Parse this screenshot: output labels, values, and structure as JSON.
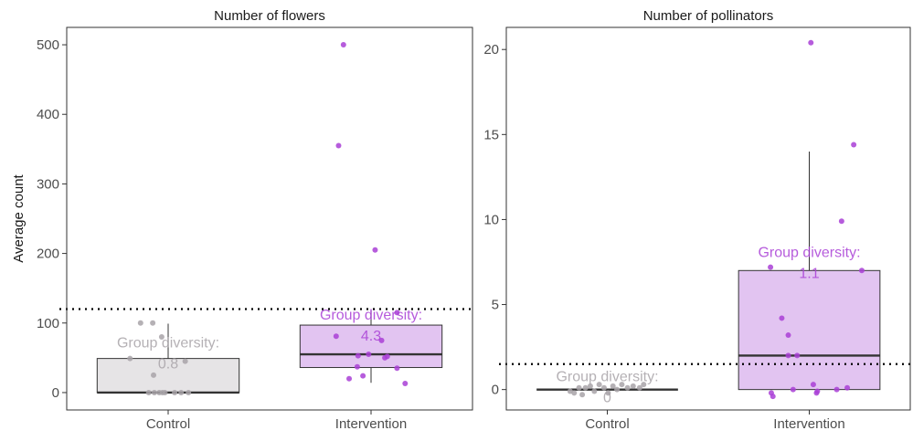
{
  "chart_data": [
    {
      "type": "box",
      "title": "Number of flowers",
      "ylabel": "Average count",
      "xlabel": "",
      "ylim": [
        -25,
        525
      ],
      "yticks": [
        0,
        100,
        200,
        300,
        400,
        500
      ],
      "categories": [
        "Control",
        "Intervention"
      ],
      "grid": false,
      "reference_line": 120,
      "colors": {
        "Control": "#a8a3a8",
        "Intervention": "#a93fd6"
      },
      "box_fill": {
        "Control": "#e6e4e6",
        "Intervention": "#e2c4f1"
      },
      "groups": [
        {
          "name": "Control",
          "box": {
            "q1": 0,
            "median": 0,
            "q3": 49,
            "whisker_low": 0,
            "whisker_high": 99
          },
          "points": [
            {
              "x": -0.47,
              "y": 49
            },
            {
              "x": -0.34,
              "y": 100
            },
            {
              "x": -0.24,
              "y": 0
            },
            {
              "x": -0.19,
              "y": 100
            },
            {
              "x": -0.18,
              "y": 25
            },
            {
              "x": -0.17,
              "y": 0
            },
            {
              "x": -0.11,
              "y": 0
            },
            {
              "x": -0.08,
              "y": 80
            },
            {
              "x": -0.07,
              "y": 0
            },
            {
              "x": -0.04,
              "y": 0
            },
            {
              "x": 0.08,
              "y": 0
            },
            {
              "x": 0.16,
              "y": 0
            },
            {
              "x": 0.21,
              "y": 45
            },
            {
              "x": 0.25,
              "y": 0
            }
          ],
          "annotation": {
            "label": "Group diversity:",
            "value": "0.8",
            "y": 65
          }
        },
        {
          "name": "Intervention",
          "box": {
            "q1": 36,
            "median": 55,
            "q3": 97,
            "whisker_low": 14,
            "whisker_high": 118
          },
          "points": [
            {
              "x": -0.43,
              "y": 81
            },
            {
              "x": -0.4,
              "y": 355
            },
            {
              "x": -0.34,
              "y": 500
            },
            {
              "x": -0.27,
              "y": 20
            },
            {
              "x": -0.17,
              "y": 37
            },
            {
              "x": -0.16,
              "y": 53
            },
            {
              "x": -0.1,
              "y": 24
            },
            {
              "x": -0.03,
              "y": 55
            },
            {
              "x": 0.05,
              "y": 205
            },
            {
              "x": 0.13,
              "y": 75
            },
            {
              "x": 0.17,
              "y": 50
            },
            {
              "x": 0.2,
              "y": 52
            },
            {
              "x": 0.32,
              "y": 115
            },
            {
              "x": 0.32,
              "y": 35
            },
            {
              "x": 0.42,
              "y": 13
            }
          ],
          "annotation": {
            "label": "Group diversity:",
            "value": "4.3",
            "y": 105
          }
        }
      ]
    },
    {
      "type": "box",
      "title": "Number of pollinators",
      "ylabel": "",
      "xlabel": "",
      "ylim": [
        -1.2,
        21.3
      ],
      "yticks": [
        0,
        5,
        10,
        15,
        20
      ],
      "categories": [
        "Control",
        "Intervention"
      ],
      "grid": false,
      "reference_line": 1.5,
      "colors": {
        "Control": "#a8a3a8",
        "Intervention": "#a93fd6"
      },
      "box_fill": {
        "Control": "#e6e4e6",
        "Intervention": "#e2c4f1"
      },
      "groups": [
        {
          "name": "Control",
          "box": {
            "q1": 0,
            "median": 0,
            "q3": 0,
            "whisker_low": 0,
            "whisker_high": 0
          },
          "points": [
            {
              "x": -0.46,
              "y": -0.1
            },
            {
              "x": -0.41,
              "y": -0.2
            },
            {
              "x": -0.35,
              "y": 0.1
            },
            {
              "x": -0.31,
              "y": -0.3
            },
            {
              "x": -0.27,
              "y": 0.1
            },
            {
              "x": -0.21,
              "y": 0.2
            },
            {
              "x": -0.16,
              "y": -0.1
            },
            {
              "x": -0.1,
              "y": 0.3
            },
            {
              "x": -0.04,
              "y": 0.1
            },
            {
              "x": 0.01,
              "y": -0.2
            },
            {
              "x": 0.07,
              "y": 0.2
            },
            {
              "x": 0.12,
              "y": 0
            },
            {
              "x": 0.18,
              "y": 0.3
            },
            {
              "x": 0.25,
              "y": 0.1
            },
            {
              "x": 0.32,
              "y": 0.2
            },
            {
              "x": 0.4,
              "y": 0.1
            },
            {
              "x": 0.45,
              "y": 0.3
            }
          ],
          "annotation": {
            "label": "Group diversity:",
            "value": "0",
            "y": 0.5
          }
        },
        {
          "name": "Intervention",
          "box": {
            "q1": 0,
            "median": 2,
            "q3": 7,
            "whisker_low": 0,
            "whisker_high": 14
          },
          "points": [
            {
              "x": -0.48,
              "y": 7.2
            },
            {
              "x": -0.47,
              "y": -0.2
            },
            {
              "x": -0.45,
              "y": -0.4
            },
            {
              "x": -0.34,
              "y": 4.2
            },
            {
              "x": -0.26,
              "y": 2
            },
            {
              "x": -0.26,
              "y": 3.2
            },
            {
              "x": -0.15,
              "y": 2
            },
            {
              "x": -0.2,
              "y": 0
            },
            {
              "x": 0.02,
              "y": 20.4
            },
            {
              "x": 0.05,
              "y": 0.3
            },
            {
              "x": 0.09,
              "y": -0.2
            },
            {
              "x": 0.1,
              "y": -0.1
            },
            {
              "x": 0.34,
              "y": 0
            },
            {
              "x": 0.4,
              "y": 9.9
            },
            {
              "x": 0.47,
              "y": 0.1
            },
            {
              "x": 0.55,
              "y": 14.4
            },
            {
              "x": 0.65,
              "y": 7
            }
          ],
          "annotation": {
            "label": "Group diversity:",
            "value": "1.1",
            "y": 7.8
          }
        }
      ]
    }
  ]
}
